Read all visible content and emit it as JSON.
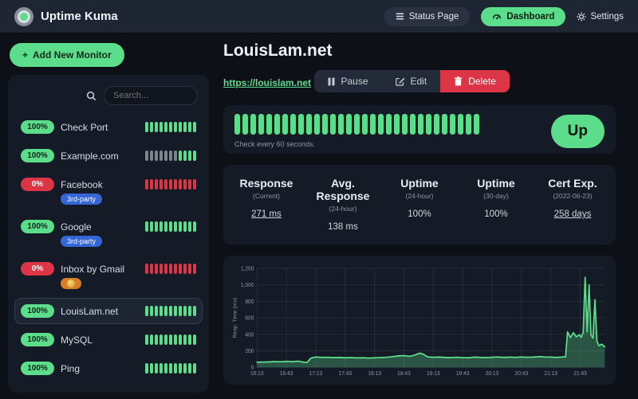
{
  "navbar": {
    "brand": "Uptime Kuma",
    "status_page": "Status Page",
    "dashboard": "Dashboard",
    "settings": "Settings"
  },
  "icons": {
    "brand": "uptime-kuma-logo-icon",
    "status_page": "hamburger-icon",
    "dashboard": "gauge-icon",
    "settings": "gear-icon",
    "search": "search-icon",
    "add": "plus-icon",
    "pause": "pause-icon",
    "edit": "edit-pencil-icon",
    "delete": "trash-icon"
  },
  "colors": {
    "accent_green": "#5cdd8b",
    "status_red": "#dc3545",
    "tag_blue": "#3566d6",
    "tag_orange": "#d77f28",
    "card_bg": "#151b26",
    "page_bg": "#0d1117",
    "navbar_bg": "#1e2634"
  },
  "sidebar": {
    "add_button": "Add New Monitor",
    "search_placeholder": "Search...",
    "monitors": [
      {
        "name": "Check Port",
        "badge": "100%",
        "badge_type": "up",
        "tags": [],
        "beats": "uuuuuuuuuuu",
        "selected": false
      },
      {
        "name": "Example.com",
        "badge": "100%",
        "badge_type": "up",
        "tags": [],
        "beats": "eeeeeeeuuuu",
        "selected": false
      },
      {
        "name": "Facebook",
        "badge": "0%",
        "badge_type": "down",
        "tags": [
          {
            "label": "3rd-party",
            "type": "blue",
            "emoji": false
          }
        ],
        "beats": "ddddddddddd",
        "selected": false
      },
      {
        "name": "Google",
        "badge": "100%",
        "badge_type": "up",
        "tags": [
          {
            "label": "3rd-party",
            "type": "blue",
            "emoji": false
          }
        ],
        "beats": "uuuuuuuuuuu",
        "selected": false
      },
      {
        "name": "Inbox by Gmail",
        "badge": "0%",
        "badge_type": "down",
        "tags": [
          {
            "label": "🙉",
            "type": "orange",
            "emoji": true
          }
        ],
        "beats": "ddddddddddd",
        "selected": false
      },
      {
        "name": "LouisLam.net",
        "badge": "100%",
        "badge_type": "up",
        "tags": [],
        "beats": "uuuuuuuuuuu",
        "selected": true
      },
      {
        "name": "MySQL",
        "badge": "100%",
        "badge_type": "up",
        "tags": [],
        "beats": "uuuuuuuuuuu",
        "selected": false
      },
      {
        "name": "Ping",
        "badge": "100%",
        "badge_type": "up",
        "tags": [],
        "beats": "uuuuuuuuuuu",
        "selected": false
      }
    ]
  },
  "main": {
    "title": "LouisLam.net",
    "url": "https://louislam.net",
    "actions": {
      "pause": "Pause",
      "edit": "Edit",
      "delete": "Delete"
    },
    "up_card": {
      "status": "Up",
      "check_text": "Check every 60 seconds.",
      "beat_count": 31
    },
    "stats": [
      {
        "label": "Response",
        "period": "(Current)",
        "value": "271 ms",
        "link": true
      },
      {
        "label": "Avg. Response",
        "period": "(24-hour)",
        "value": "138 ms",
        "link": false
      },
      {
        "label": "Uptime",
        "period": "(24-hour)",
        "value": "100%",
        "link": false
      },
      {
        "label": "Uptime",
        "period": "(30-day)",
        "value": "100%",
        "link": false
      },
      {
        "label": "Cert Exp.",
        "period": "(2022-06-23)",
        "value": "258 days",
        "link": true
      }
    ]
  },
  "chart_data": {
    "type": "area",
    "title": "",
    "xlabel": "",
    "ylabel": "Resp. Time (ms)",
    "ylim": [
      0,
      1200
    ],
    "yticks": [
      0,
      200,
      400,
      600,
      800,
      1000,
      1200
    ],
    "ytick_labels": [
      "0",
      "200",
      "400",
      "600",
      "800",
      "1,000",
      "1,200"
    ],
    "xticks": [
      "16:13",
      "16:43",
      "17:13",
      "17:43",
      "18:13",
      "18:43",
      "19:13",
      "19:43",
      "20:13",
      "20:43",
      "21:13",
      "21:43"
    ],
    "grid": true,
    "legend": "none",
    "line_color": "#5cdd8b",
    "fill_color": "rgba(92,221,139,0.30)",
    "x": [
      "16:13",
      "16:19",
      "16:25",
      "16:31",
      "16:37",
      "16:43",
      "16:49",
      "16:55",
      "17:01",
      "17:04",
      "17:08",
      "17:13",
      "17:19",
      "17:25",
      "17:31",
      "17:37",
      "17:43",
      "17:49",
      "17:55",
      "18:01",
      "18:07",
      "18:13",
      "18:19",
      "18:25",
      "18:31",
      "18:37",
      "18:43",
      "18:49",
      "18:55",
      "18:59",
      "19:03",
      "19:07",
      "19:13",
      "19:19",
      "19:25",
      "19:31",
      "19:37",
      "19:43",
      "19:49",
      "19:55",
      "20:01",
      "20:07",
      "20:13",
      "20:19",
      "20:25",
      "20:31",
      "20:37",
      "20:43",
      "20:49",
      "20:55",
      "21:01",
      "21:07",
      "21:13",
      "21:19",
      "21:25",
      "21:28",
      "21:30",
      "21:33",
      "21:36",
      "21:39",
      "21:42",
      "21:44",
      "21:46",
      "21:48",
      "21:50",
      "21:52",
      "21:54",
      "21:56",
      "21:58",
      "22:00",
      "22:02",
      "22:05",
      "22:08"
    ],
    "y": [
      62,
      64,
      66,
      70,
      68,
      72,
      70,
      74,
      62,
      58,
      112,
      126,
      120,
      122,
      118,
      120,
      116,
      118,
      114,
      116,
      112,
      115,
      118,
      122,
      128,
      138,
      142,
      132,
      152,
      172,
      158,
      128,
      122,
      125,
      120,
      118,
      122,
      118,
      116,
      124,
      120,
      118,
      122,
      126,
      120,
      124,
      121,
      126,
      122,
      124,
      130,
      126,
      124,
      120,
      126,
      128,
      430,
      360,
      420,
      370,
      395,
      365,
      425,
      1090,
      430,
      1000,
      390,
      355,
      820,
      320,
      262,
      280,
      250
    ]
  }
}
